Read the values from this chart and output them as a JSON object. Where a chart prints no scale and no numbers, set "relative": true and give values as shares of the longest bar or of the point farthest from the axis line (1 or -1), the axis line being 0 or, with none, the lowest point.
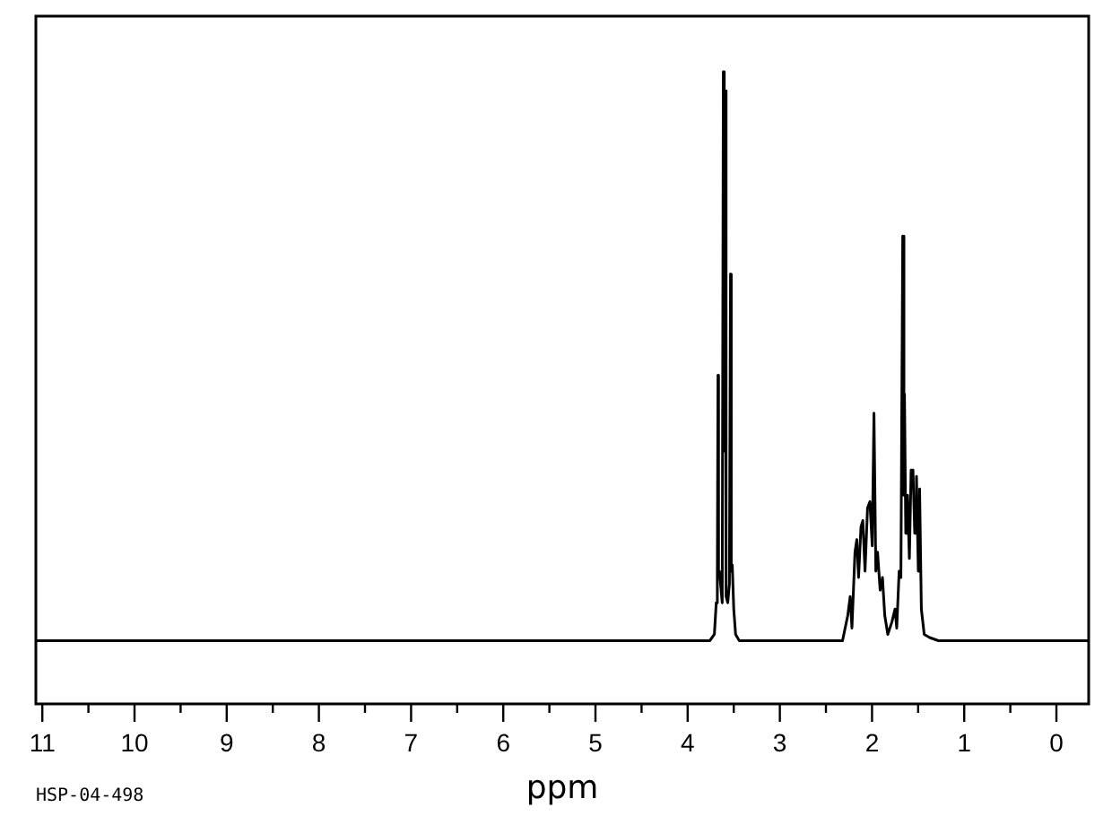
{
  "chart_data": {
    "type": "line",
    "xlabel": "ppm",
    "annotations": [
      "HSP-04-498"
    ],
    "relative": true,
    "color": "#000000",
    "xlim": [
      11.07,
      -0.35
    ],
    "xticks": [
      11,
      {
        "value": 10.5,
        "label": null
      },
      10,
      {
        "value": 9.5,
        "label": null
      },
      9,
      {
        "value": 8.5,
        "label": null
      },
      8,
      {
        "value": 7.5,
        "label": null
      },
      7,
      {
        "value": 6.5,
        "label": null
      },
      6,
      {
        "value": 5.5,
        "label": null
      },
      5,
      {
        "value": 4.5,
        "label": null
      },
      4,
      {
        "value": 3.5,
        "label": null
      },
      3,
      {
        "value": 2.5,
        "label": null
      },
      2,
      {
        "value": 1.5,
        "label": null
      },
      1,
      {
        "value": 0.5,
        "label": null
      },
      0
    ],
    "x": [
      11.07,
      10,
      8,
      6,
      4.5,
      3.8,
      3.76,
      3.71,
      3.69,
      3.678,
      3.671,
      3.665,
      3.655,
      3.64,
      3.625,
      3.613,
      3.603,
      3.593,
      3.583,
      3.565,
      3.547,
      3.535,
      3.527,
      3.516,
      3.5,
      3.48,
      3.44,
      3.3,
      2.6,
      2.32,
      2.263,
      2.237,
      2.218,
      2.185,
      2.165,
      2.146,
      2.12,
      2.1,
      2.076,
      2.049,
      2.023,
      1.998,
      1.979,
      1.959,
      1.94,
      1.912,
      1.887,
      1.862,
      1.829,
      1.784,
      1.751,
      1.732,
      1.706,
      1.687,
      1.667,
      1.654,
      1.648,
      1.634,
      1.615,
      1.595,
      1.576,
      1.556,
      1.537,
      1.518,
      1.498,
      1.484,
      1.465,
      1.434,
      1.375,
      1.28,
      0.8,
      0,
      -0.35
    ],
    "values": [
      0.1,
      0.1,
      0.1,
      0.1,
      0.1,
      0.1,
      0.1,
      0.11,
      0.16,
      0.2,
      0.52,
      0.2,
      0.21,
      0.21,
      0.16,
      1.0,
      0.4,
      0.97,
      0.17,
      0.16,
      0.19,
      0.68,
      0.21,
      0.22,
      0.15,
      0.11,
      0.1,
      0.1,
      0.1,
      0.1,
      0.14,
      0.17,
      0.12,
      0.24,
      0.26,
      0.2,
      0.28,
      0.29,
      0.21,
      0.31,
      0.32,
      0.25,
      0.46,
      0.21,
      0.24,
      0.18,
      0.2,
      0.14,
      0.11,
      0.13,
      0.15,
      0.12,
      0.21,
      0.2,
      0.74,
      0.33,
      0.49,
      0.27,
      0.33,
      0.23,
      0.37,
      0.37,
      0.27,
      0.36,
      0.21,
      0.34,
      0.15,
      0.11,
      0.105,
      0.1,
      0.1,
      0.1,
      0.1
    ]
  }
}
